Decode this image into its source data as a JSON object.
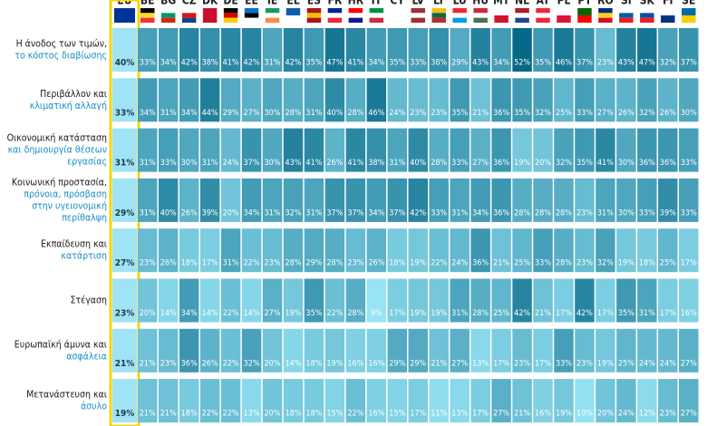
{
  "table": {
    "columns": [
      "EU",
      "BE",
      "BG",
      "CZ",
      "DK",
      "DE",
      "EE",
      "IE",
      "EL",
      "ES",
      "FR",
      "HR",
      "IT",
      "CY",
      "LV",
      "LT",
      "LU",
      "HU",
      "MT",
      "NL",
      "AT",
      "PL",
      "PT",
      "RO",
      "SI",
      "SK",
      "FI",
      "SE"
    ],
    "rows": [
      {
        "label": [
          "Η άνοδος των τιμών,",
          "το κόστος διαβίωσης"
        ],
        "values": [
          "40%",
          "33%",
          "34%",
          "42%",
          "38%",
          "41%",
          "42%",
          "31%",
          "42%",
          "35%",
          "47%",
          "41%",
          "34%",
          "35%",
          "33%",
          "38%",
          "29%",
          "43%",
          "34%",
          "52%",
          "35%",
          "46%",
          "37%",
          "23%",
          "43%",
          "47%",
          "32%",
          "37%"
        ]
      },
      {
        "label": [
          "Περιβάλλον και",
          "κλιματική αλλαγή"
        ],
        "values": [
          "33%",
          "34%",
          "31%",
          "34%",
          "44%",
          "29%",
          "27%",
          "30%",
          "28%",
          "31%",
          "40%",
          "28%",
          "46%",
          "24%",
          "23%",
          "23%",
          "35%",
          "21%",
          "36%",
          "35%",
          "32%",
          "25%",
          "33%",
          "27%",
          "26%",
          "32%",
          "26%",
          "30%"
        ]
      },
      {
        "label": [
          "Οικονομική κατάσταση",
          "και δημιουργία θέσεων",
          "εργασίας"
        ],
        "values": [
          "31%",
          "31%",
          "33%",
          "30%",
          "31%",
          "24%",
          "37%",
          "30%",
          "43%",
          "41%",
          "26%",
          "41%",
          "38%",
          "31%",
          "40%",
          "28%",
          "33%",
          "27%",
          "36%",
          "19%",
          "20%",
          "32%",
          "35%",
          "41%",
          "30%",
          "36%",
          "36%",
          "33%"
        ]
      },
      {
        "label": [
          "Κοινωνική προστασία,",
          "πρόνοια, πρόσβαση",
          "στην υγειονομική",
          "περίθαλψη"
        ],
        "values": [
          "29%",
          "31%",
          "40%",
          "26%",
          "39%",
          "20%",
          "34%",
          "31%",
          "32%",
          "31%",
          "37%",
          "37%",
          "34%",
          "37%",
          "42%",
          "33%",
          "31%",
          "34%",
          "36%",
          "28%",
          "28%",
          "28%",
          "23%",
          "31%",
          "30%",
          "33%",
          "39%",
          "33%"
        ]
      },
      {
        "label": [
          "Εκπαίδευση και",
          "κατάρτιση"
        ],
        "values": [
          "27%",
          "23%",
          "26%",
          "18%",
          "17%",
          "31%",
          "22%",
          "23%",
          "28%",
          "29%",
          "28%",
          "23%",
          "26%",
          "18%",
          "19%",
          "22%",
          "24%",
          "36%",
          "21%",
          "25%",
          "33%",
          "28%",
          "23%",
          "32%",
          "19%",
          "18%",
          "25%",
          "17%"
        ]
      },
      {
        "label": [
          "Στέγαση"
        ],
        "values": [
          "23%",
          "20%",
          "14%",
          "34%",
          "14%",
          "22%",
          "14%",
          "27%",
          "19%",
          "35%",
          "22%",
          "28%",
          "9%",
          "17%",
          "19%",
          "19%",
          "31%",
          "28%",
          "25%",
          "42%",
          "21%",
          "17%",
          "42%",
          "17%",
          "35%",
          "31%",
          "17%",
          "16%"
        ]
      },
      {
        "label": [
          "Ευρωπαϊκή άμυνα και",
          "ασφάλεια"
        ],
        "values": [
          "21%",
          "21%",
          "23%",
          "36%",
          "26%",
          "22%",
          "32%",
          "20%",
          "14%",
          "18%",
          "19%",
          "16%",
          "16%",
          "29%",
          "29%",
          "21%",
          "27%",
          "13%",
          "17%",
          "23%",
          "17%",
          "33%",
          "23%",
          "19%",
          "25%",
          "24%",
          "24%",
          "27%"
        ]
      },
      {
        "label": [
          "Μετανάστευση και",
          "άσυλο"
        ],
        "values": [
          "19%",
          "21%",
          "21%",
          "18%",
          "22%",
          "22%",
          "13%",
          "20%",
          "18%",
          "18%",
          "15%",
          "22%",
          "16%",
          "15%",
          "17%",
          "11%",
          "13%",
          "17%",
          "27%",
          "21%",
          "16%",
          "19%",
          "10%",
          "20%",
          "24%",
          "12%",
          "23%",
          "27%"
        ]
      }
    ]
  }
}
